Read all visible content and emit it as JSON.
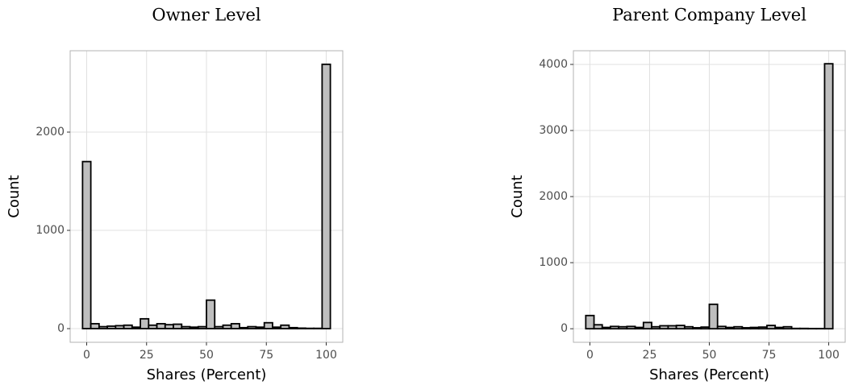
{
  "chart_data": [
    {
      "type": "histogram",
      "title": "Owner Level",
      "xlabel": "Shares (Percent)",
      "ylabel": "Count",
      "bins": [
        -1.724,
        1.724,
        5.172,
        8.621,
        12.069,
        15.517,
        18.966,
        22.414,
        25.862,
        29.31,
        32.759,
        36.207,
        39.655,
        43.103,
        46.552,
        50,
        53.448,
        56.897,
        60.345,
        63.793,
        67.241,
        70.69,
        74.138,
        77.586,
        81.034,
        84.483,
        87.931,
        91.379,
        94.828,
        98.276,
        101.724
      ],
      "values": [
        1700,
        50,
        20,
        25,
        30,
        35,
        15,
        100,
        35,
        50,
        40,
        45,
        20,
        15,
        20,
        290,
        20,
        35,
        50,
        10,
        20,
        15,
        60,
        15,
        35,
        10,
        5,
        3,
        3,
        2690
      ],
      "color": "#bebebe",
      "xlim": [
        -6.9,
        106.9
      ],
      "ylim": [
        -139,
        2828
      ],
      "xticks": [
        0,
        25,
        50,
        75,
        100
      ],
      "yticks": [
        0,
        1000,
        2000
      ],
      "grid": true
    },
    {
      "type": "histogram",
      "title": "Parent Company Level",
      "xlabel": "Shares (Percent)",
      "ylabel": "Count",
      "bins": [
        -1.724,
        1.724,
        5.172,
        8.621,
        12.069,
        15.517,
        18.966,
        22.414,
        25.862,
        29.31,
        32.759,
        36.207,
        39.655,
        43.103,
        46.552,
        50,
        53.448,
        56.897,
        60.345,
        63.793,
        67.241,
        70.69,
        74.138,
        77.586,
        81.034,
        84.483,
        87.931,
        91.379,
        94.828,
        98.276,
        101.724
      ],
      "values": [
        200,
        60,
        20,
        35,
        30,
        35,
        20,
        95,
        30,
        45,
        45,
        50,
        30,
        15,
        25,
        370,
        35,
        20,
        30,
        15,
        20,
        25,
        50,
        20,
        30,
        5,
        5,
        3,
        3,
        4010
      ],
      "color": "#bebebe",
      "xlim": [
        -6.9,
        106.9
      ],
      "ylim": [
        -205,
        4207
      ],
      "xticks": [
        0,
        25,
        50,
        75,
        100
      ],
      "yticks": [
        0,
        1000,
        2000,
        3000,
        4000
      ],
      "grid": true
    }
  ]
}
